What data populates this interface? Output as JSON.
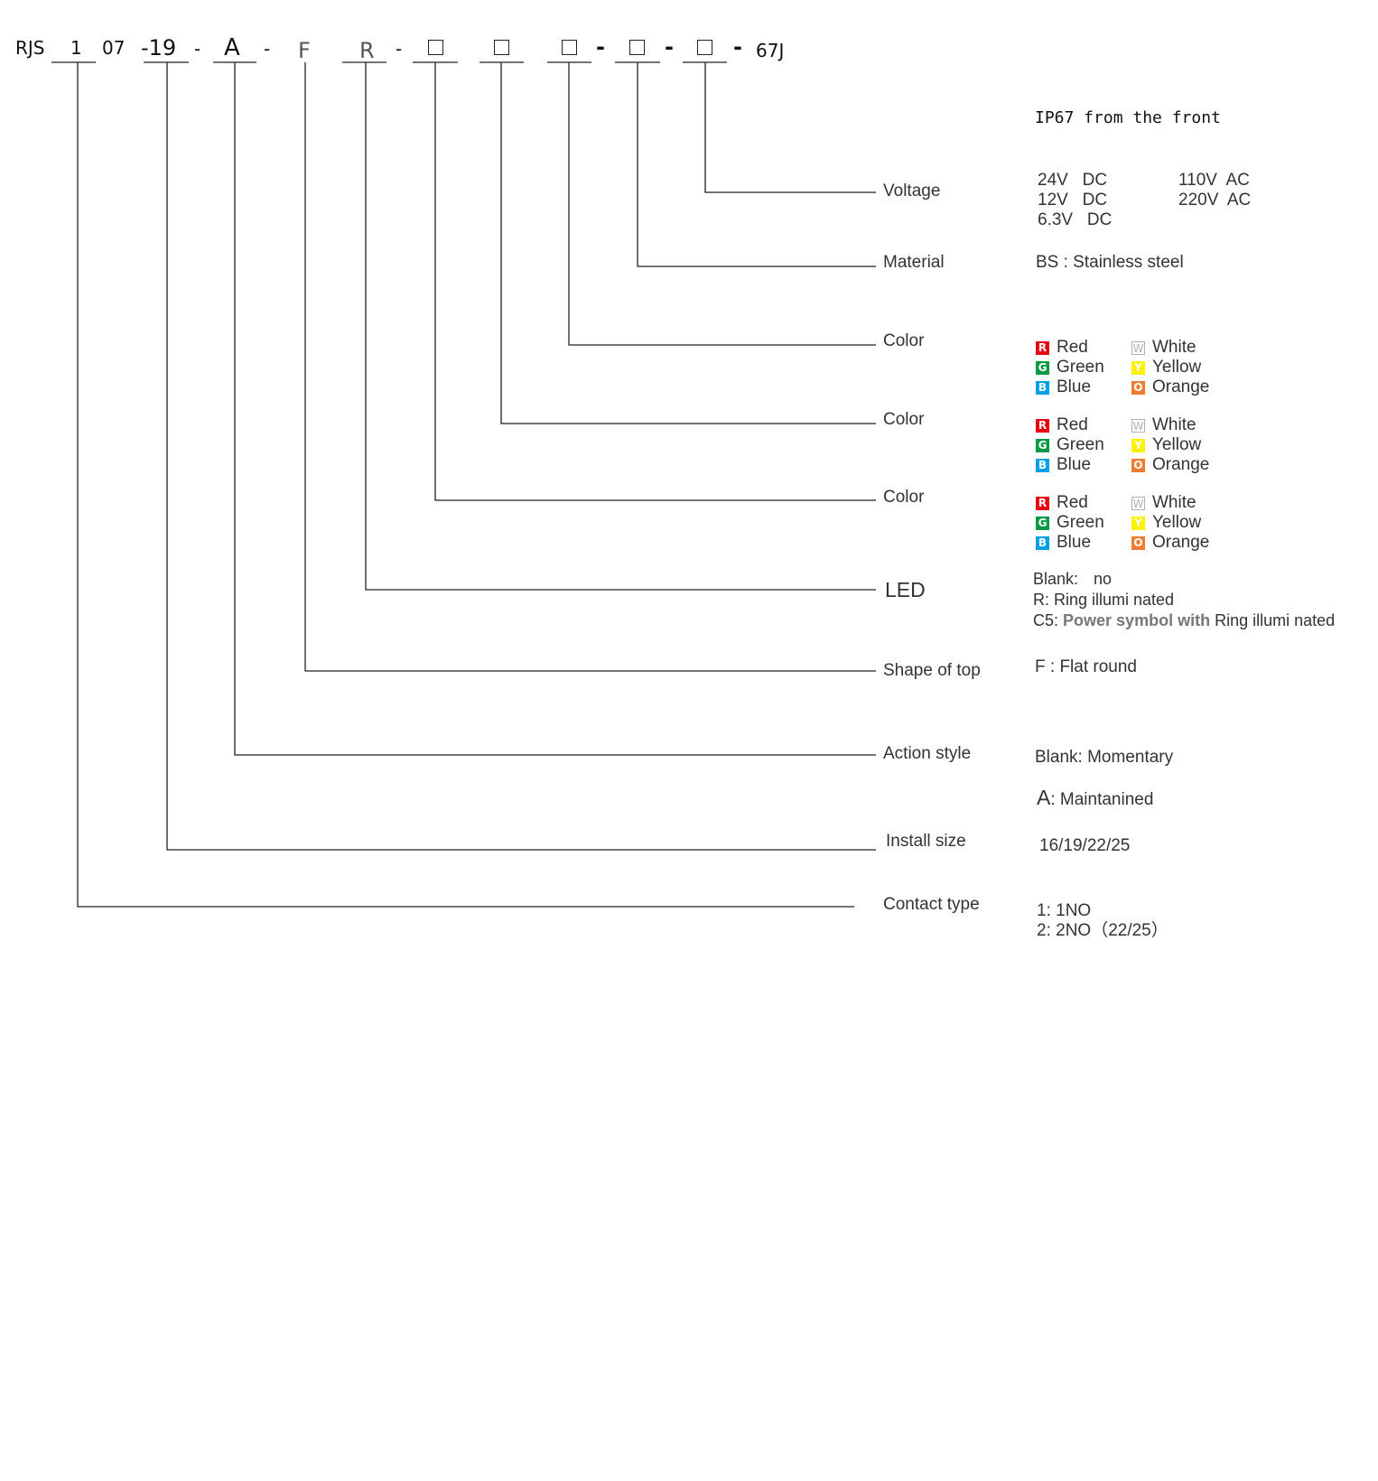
{
  "code": {
    "prefix": "RJS",
    "contact": "1",
    "series": "07",
    "size": "-19",
    "action": "A",
    "shape": "F",
    "led": "R",
    "dash": "-",
    "suffix": "67J"
  },
  "note": "IP67 from the front",
  "labels": {
    "voltage": "Voltage",
    "material": "Material",
    "color": "Color",
    "led": "LED",
    "shape": "Shape of top",
    "action": "Action style",
    "install": "Install size",
    "contact": "Contact type"
  },
  "voltage": {
    "dc": [
      "24V   DC",
      "12V   DC",
      "6.3V   DC"
    ],
    "ac": [
      "110V  AC",
      "220V  AC"
    ]
  },
  "material": "BS : Stainless steel",
  "color_options": [
    {
      "code": "R",
      "name": "Red",
      "color": "#e60012"
    },
    {
      "code": "G",
      "name": "Green",
      "color": "#009944"
    },
    {
      "code": "B",
      "name": "Blue",
      "color": "#00a0e9"
    },
    {
      "code": "W",
      "name": "White",
      "color": "#ffffff"
    },
    {
      "code": "Y",
      "name": "Yellow",
      "color": "#fff100"
    },
    {
      "code": "O",
      "name": "Orange",
      "color": "#ee7d31"
    }
  ],
  "led": {
    "blank_label": "Blank:",
    "blank_value": "no",
    "r": "R: Ring illumi nated",
    "c5_label": "C5:",
    "c5_bold": "Power symbol with",
    "c5_rest": "Ring illumi nated"
  },
  "shape": "F : Flat round",
  "action": {
    "momentary": "Blank: Momentary",
    "maintained_code": "A",
    "maintained": ": Maintanined"
  },
  "install": "16/19/22/25",
  "contact": [
    "1: 1NO",
    "2: 2NO（22/25）"
  ]
}
